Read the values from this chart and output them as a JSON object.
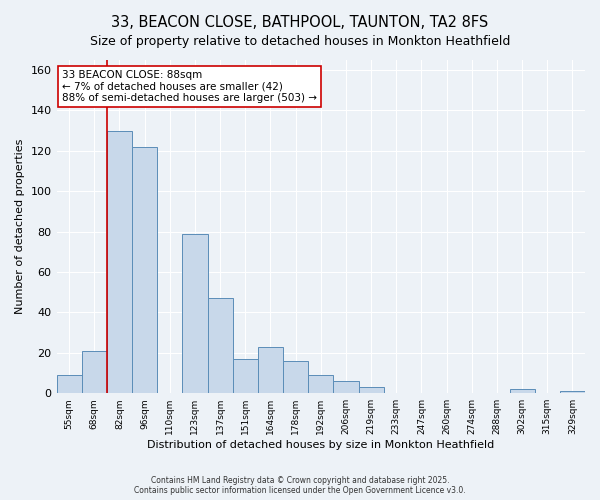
{
  "title": "33, BEACON CLOSE, BATHPOOL, TAUNTON, TA2 8FS",
  "subtitle": "Size of property relative to detached houses in Monkton Heathfield",
  "xlabel": "Distribution of detached houses by size in Monkton Heathfield",
  "ylabel": "Number of detached properties",
  "categories": [
    "55sqm",
    "68sqm",
    "82sqm",
    "96sqm",
    "110sqm",
    "123sqm",
    "137sqm",
    "151sqm",
    "164sqm",
    "178sqm",
    "192sqm",
    "206sqm",
    "219sqm",
    "233sqm",
    "247sqm",
    "260sqm",
    "274sqm",
    "288sqm",
    "302sqm",
    "315sqm",
    "329sqm"
  ],
  "values": [
    9,
    21,
    130,
    122,
    0,
    79,
    47,
    17,
    23,
    16,
    9,
    6,
    3,
    0,
    0,
    0,
    0,
    0,
    2,
    0,
    1
  ],
  "bar_color": "#c8d8ea",
  "bar_edge_color": "#5b8db8",
  "vline_x": 2.0,
  "vline_color": "#cc0000",
  "annotation_text": "33 BEACON CLOSE: 88sqm\n← 7% of detached houses are smaller (42)\n88% of semi-detached houses are larger (503) →",
  "annotation_box_color": "#ffffff",
  "annotation_box_edge": "#cc0000",
  "ylim": [
    0,
    165
  ],
  "yticks": [
    0,
    20,
    40,
    60,
    80,
    100,
    120,
    140,
    160
  ],
  "title_fontsize": 10.5,
  "subtitle_fontsize": 9,
  "footer": "Contains HM Land Registry data © Crown copyright and database right 2025.\nContains public sector information licensed under the Open Government Licence v3.0.",
  "bg_color": "#edf2f7",
  "plot_bg_color": "#edf2f7",
  "grid_color": "#ffffff"
}
